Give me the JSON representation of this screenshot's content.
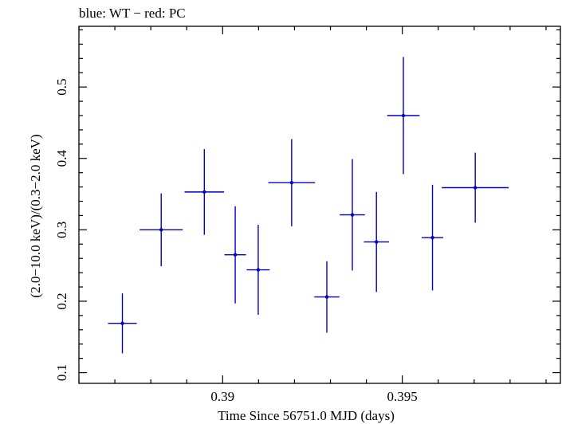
{
  "chart_data": {
    "type": "scatter",
    "title": "blue: WT − red: PC",
    "xlabel": "Time Since 56751.0 MJD (days)",
    "ylabel": "(2.0−10.0 keV)/(0.3−2.0 keV)",
    "xlim": [
      0.386,
      0.3994
    ],
    "ylim": [
      0.085,
      0.585
    ],
    "x_ticks": [
      {
        "value": 0.39,
        "label": "0.39"
      },
      {
        "value": 0.395,
        "label": "0.395"
      }
    ],
    "y_ticks": [
      {
        "value": 0.1,
        "label": "0.1"
      },
      {
        "value": 0.2,
        "label": "0.2"
      },
      {
        "value": 0.3,
        "label": "0.3"
      },
      {
        "value": 0.4,
        "label": "0.4"
      },
      {
        "value": 0.5,
        "label": "0.5"
      }
    ],
    "grid": false,
    "series": [
      {
        "color": "#0000cc",
        "points": [
          {
            "x": 0.38721,
            "xerr": 0.0004,
            "y": 0.169,
            "yerr": 0.042
          },
          {
            "x": 0.38829,
            "xerr": 0.0006,
            "y": 0.3,
            "yerr": 0.051
          },
          {
            "x": 0.38949,
            "xerr": 0.00055,
            "y": 0.353,
            "yerr": 0.06
          },
          {
            "x": 0.39035,
            "xerr": 0.0003,
            "y": 0.265,
            "yerr": 0.068
          },
          {
            "x": 0.39099,
            "xerr": 0.00032,
            "y": 0.244,
            "yerr": 0.063
          },
          {
            "x": 0.39192,
            "xerr": 0.00065,
            "y": 0.366,
            "yerr": 0.061
          },
          {
            "x": 0.3929,
            "xerr": 0.00035,
            "y": 0.206,
            "yerr": 0.05
          },
          {
            "x": 0.39361,
            "xerr": 0.00035,
            "y": 0.321,
            "yerr": 0.078
          },
          {
            "x": 0.39428,
            "xerr": 0.00035,
            "y": 0.283,
            "yerr": 0.07
          },
          {
            "x": 0.39503,
            "xerr": 0.00045,
            "y": 0.46,
            "yerr": 0.082
          },
          {
            "x": 0.39584,
            "xerr": 0.0003,
            "y": 0.289,
            "yerr": 0.074
          },
          {
            "x": 0.39703,
            "xerr": 0.00093,
            "y": 0.359,
            "yerr": 0.049
          }
        ]
      }
    ]
  }
}
